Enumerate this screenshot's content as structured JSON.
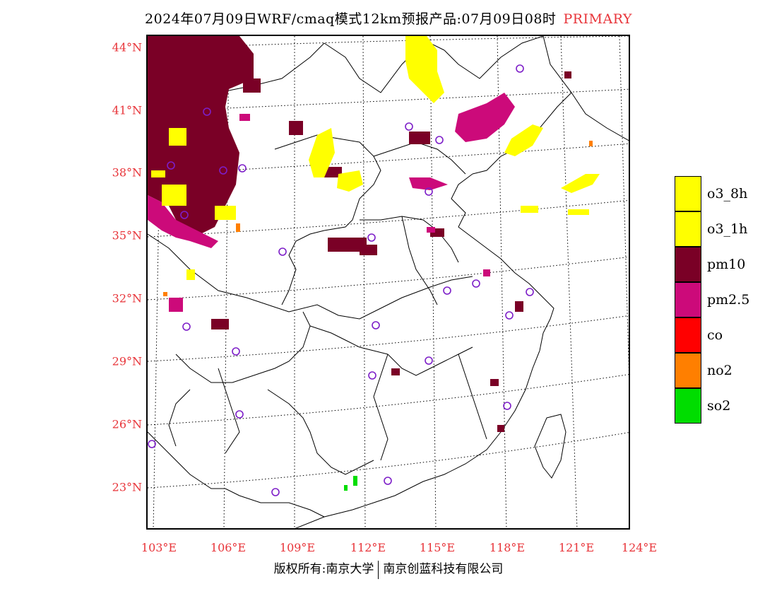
{
  "header": {
    "title": "2024年07月09日WRF/cmaq模式12km预报产品:07月09日08时",
    "tag": "PRIMARY"
  },
  "map": {
    "lat_labels": [
      "44°N",
      "41°N",
      "38°N",
      "35°N",
      "32°N",
      "29°N",
      "26°N",
      "23°N"
    ],
    "lon_labels": [
      "103°E",
      "106°E",
      "109°E",
      "112°E",
      "115°E",
      "118°E",
      "121°E",
      "124°E"
    ]
  },
  "legend": {
    "items": [
      {
        "label": "o3_8h",
        "color": "#ffff00"
      },
      {
        "label": "o3_1h",
        "color": "#ffff00"
      },
      {
        "label": "pm10",
        "color": "#7a0026"
      },
      {
        "label": "pm2.5",
        "color": "#cc0a7a"
      },
      {
        "label": "co",
        "color": "#ff0000"
      },
      {
        "label": "no2",
        "color": "#ff7f00"
      },
      {
        "label": "so2",
        "color": "#00dd00"
      }
    ]
  },
  "footer": {
    "left": "版权所有:南京大学",
    "right": "南京创蓝科技有限公司"
  }
}
